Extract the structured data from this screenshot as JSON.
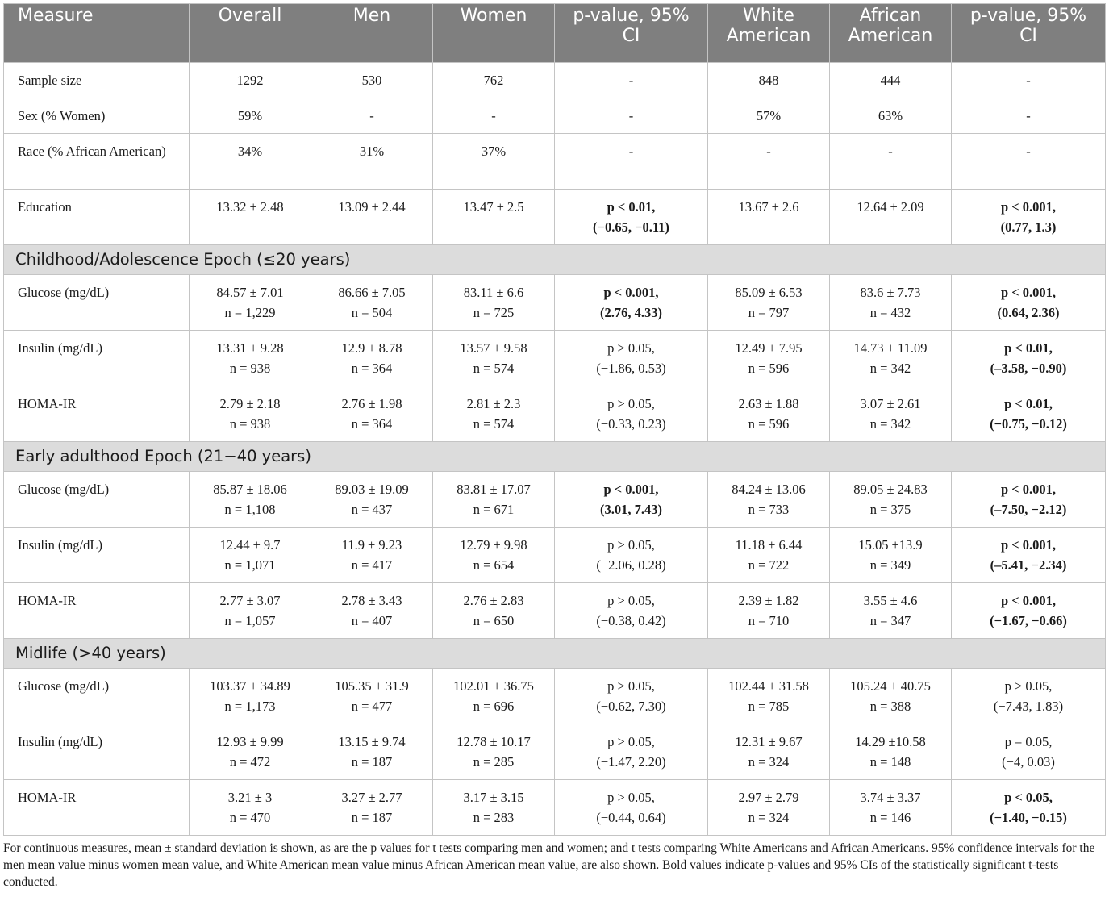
{
  "header": {
    "measure": "Measure",
    "overall": "Overall",
    "men": "Men",
    "women": "Women",
    "p_sex_1": "p-value, 95%",
    "p_sex_2": "CI",
    "white_1": "White",
    "white_2": "American",
    "african_1": "African",
    "african_2": "American",
    "p_race_1": "p-value, 95%",
    "p_race_2": "CI"
  },
  "demographics": [
    {
      "label": "Sample size",
      "overall": "1292",
      "men": "530",
      "women": "762",
      "p_sex_1": "-",
      "p_sex_2": "",
      "white": "848",
      "african": "444",
      "p_race_1": "-",
      "p_race_2": ""
    },
    {
      "label": "Sex (% Women)",
      "overall": "59%",
      "men": "-",
      "women": "-",
      "p_sex_1": "-",
      "p_sex_2": "",
      "white": "57%",
      "african": "63%",
      "p_race_1": "-",
      "p_race_2": ""
    },
    {
      "label": "Race (% African American)",
      "overall": "34%",
      "men": "31%",
      "women": "37%",
      "p_sex_1": "-",
      "p_sex_2": "",
      "white": "-",
      "african": "-",
      "p_race_1": "-",
      "p_race_2": ""
    },
    {
      "label": "Education",
      "overall": "13.32 ± 2.48",
      "men": "13.09 ± 2.44",
      "women": "13.47 ± 2.5",
      "p_sex_1": "p < 0.01,",
      "p_sex_2": "(−0.65, −0.11)",
      "white": "13.67 ± 2.6",
      "african": "12.64 ± 2.09",
      "p_race_1": "p < 0.001,",
      "p_race_2": "(0.77, 1.3)"
    }
  ],
  "sections": [
    {
      "title": "Childhood/Adolescence Epoch (≤20 years)",
      "rows": [
        {
          "label": "Glucose (mg/dL)",
          "overall": "84.57 ± 7.01",
          "overall_n": "n = 1,229",
          "men": "86.66 ± 7.05",
          "men_n": "n = 504",
          "women": "83.11 ± 6.6",
          "women_n": "n = 725",
          "p_sex_1": "p < 0.001,",
          "p_sex_2": "(2.76, 4.33)",
          "white": "85.09 ± 6.53",
          "white_n": "n = 797",
          "african": "83.6 ± 7.73",
          "african_n": "n = 432",
          "p_race_1": "p < 0.001,",
          "p_race_2": "(0.64, 2.36)"
        },
        {
          "label": "Insulin (mg/dL)",
          "overall": "13.31 ± 9.28",
          "overall_n": "n = 938",
          "men": "12.9 ± 8.78",
          "men_n": "n = 364",
          "women": "13.57 ± 9.58",
          "women_n": "n = 574",
          "p_sex_1": "p > 0.05,",
          "p_sex_2": "(−1.86, 0.53)",
          "white": "12.49 ± 7.95",
          "white_n": "n = 596",
          "african": "14.73 ± 11.09",
          "african_n": "n = 342",
          "p_race_1": "p < 0.01,",
          "p_race_2": "(–3.58, −0.90)"
        },
        {
          "label": "HOMA-IR",
          "overall": "2.79 ± 2.18",
          "overall_n": "n = 938",
          "men": "2.76 ± 1.98",
          "men_n": "n = 364",
          "women": "2.81 ± 2.3",
          "women_n": "n = 574",
          "p_sex_1": "p > 0.05,",
          "p_sex_2": "(−0.33, 0.23)",
          "white": "2.63 ± 1.88",
          "white_n": "n = 596",
          "african": "3.07 ± 2.61",
          "african_n": "n = 342",
          "p_race_1": "p < 0.01,",
          "p_race_2": "(−0.75, −0.12)"
        }
      ]
    },
    {
      "title": "Early adulthood Epoch (21−40 years)",
      "rows": [
        {
          "label": "Glucose (mg/dL)",
          "overall": "85.87 ± 18.06",
          "overall_n": "n = 1,108",
          "men": "89.03 ± 19.09",
          "men_n": "n = 437",
          "women": "83.81 ± 17.07",
          "women_n": "n = 671",
          "p_sex_1": "p < 0.001,",
          "p_sex_2": "(3.01, 7.43)",
          "white": "84.24 ± 13.06",
          "white_n": "n = 733",
          "african": "89.05 ± 24.83",
          "african_n": "n = 375",
          "p_race_1": "p < 0.001,",
          "p_race_2": "(–7.50, −2.12)"
        },
        {
          "label": "Insulin (mg/dL)",
          "overall": "12.44 ± 9.7",
          "overall_n": "n = 1,071",
          "men": "11.9 ± 9.23",
          "men_n": "n = 417",
          "women": "12.79 ± 9.98",
          "women_n": "n = 654",
          "p_sex_1": "p > 0.05,",
          "p_sex_2": "(−2.06, 0.28)",
          "white": "11.18 ± 6.44",
          "white_n": "n = 722",
          "african": "15.05 ±13.9",
          "african_n": "n = 349",
          "p_race_1": "p < 0.001,",
          "p_race_2": "(–5.41, −2.34)"
        },
        {
          "label": "HOMA-IR",
          "overall": "2.77 ± 3.07",
          "overall_n": "n = 1,057",
          "men": "2.78 ± 3.43",
          "men_n": "n = 407",
          "women": "2.76 ± 2.83",
          "women_n": "n = 650",
          "p_sex_1": "p > 0.05,",
          "p_sex_2": "(−0.38, 0.42)",
          "white": "2.39 ± 1.82",
          "white_n": "n = 710",
          "african": "3.55 ± 4.6",
          "african_n": "n = 347",
          "p_race_1": "p < 0.001,",
          "p_race_2": "(−1.67, −0.66)"
        }
      ]
    },
    {
      "title": "Midlife (>40 years)",
      "rows": [
        {
          "label": "Glucose (mg/dL)",
          "overall": "103.37 ± 34.89",
          "overall_n": "n = 1,173",
          "men": "105.35 ± 31.9",
          "men_n": "n = 477",
          "women": "102.01 ± 36.75",
          "women_n": "n = 696",
          "p_sex_1": "p > 0.05,",
          "p_sex_2": "(−0.62, 7.30)",
          "white": "102.44 ± 31.58",
          "white_n": "n = 785",
          "african": "105.24 ± 40.75",
          "african_n": "n = 388",
          "p_race_1": "p > 0.05,",
          "p_race_2": "(−7.43, 1.83)"
        },
        {
          "label": "Insulin (mg/dL)",
          "overall": "12.93 ± 9.99",
          "overall_n": "n = 472",
          "men": "13.15 ± 9.74",
          "men_n": "n = 187",
          "women": "12.78 ± 10.17",
          "women_n": "n = 285",
          "p_sex_1": "p > 0.05,",
          "p_sex_2": "(−1.47, 2.20)",
          "white": "12.31 ± 9.67",
          "white_n": "n = 324",
          "african": "14.29 ±10.58",
          "african_n": "n = 148",
          "p_race_1": "p = 0.05,",
          "p_race_2": "(−4, 0.03)"
        },
        {
          "label": "HOMA-IR",
          "overall": "3.21 ± 3",
          "overall_n": "n = 470",
          "men": "3.27 ± 2.77",
          "men_n": "n = 187",
          "women": "3.17 ± 3.15",
          "women_n": "n = 283",
          "p_sex_1": "p > 0.05,",
          "p_sex_2": "(−0.44, 0.64)",
          "white": "2.97 ± 2.79",
          "white_n": "n = 324",
          "african": "3.74 ± 3.37",
          "african_n": "n = 146",
          "p_race_1": "p < 0.05,",
          "p_race_2": "(−1.40, −0.15)"
        }
      ]
    }
  ],
  "footnote": "For continuous measures, mean ± standard deviation is shown, as are the p values for t tests comparing men and women; and t tests comparing White Americans and African Americans. 95% confidence intervals for the men mean value minus women mean value, and White American mean value minus African American mean value, are also shown. Bold values indicate p-values and 95% CIs of the statistically significant t-tests conducted."
}
